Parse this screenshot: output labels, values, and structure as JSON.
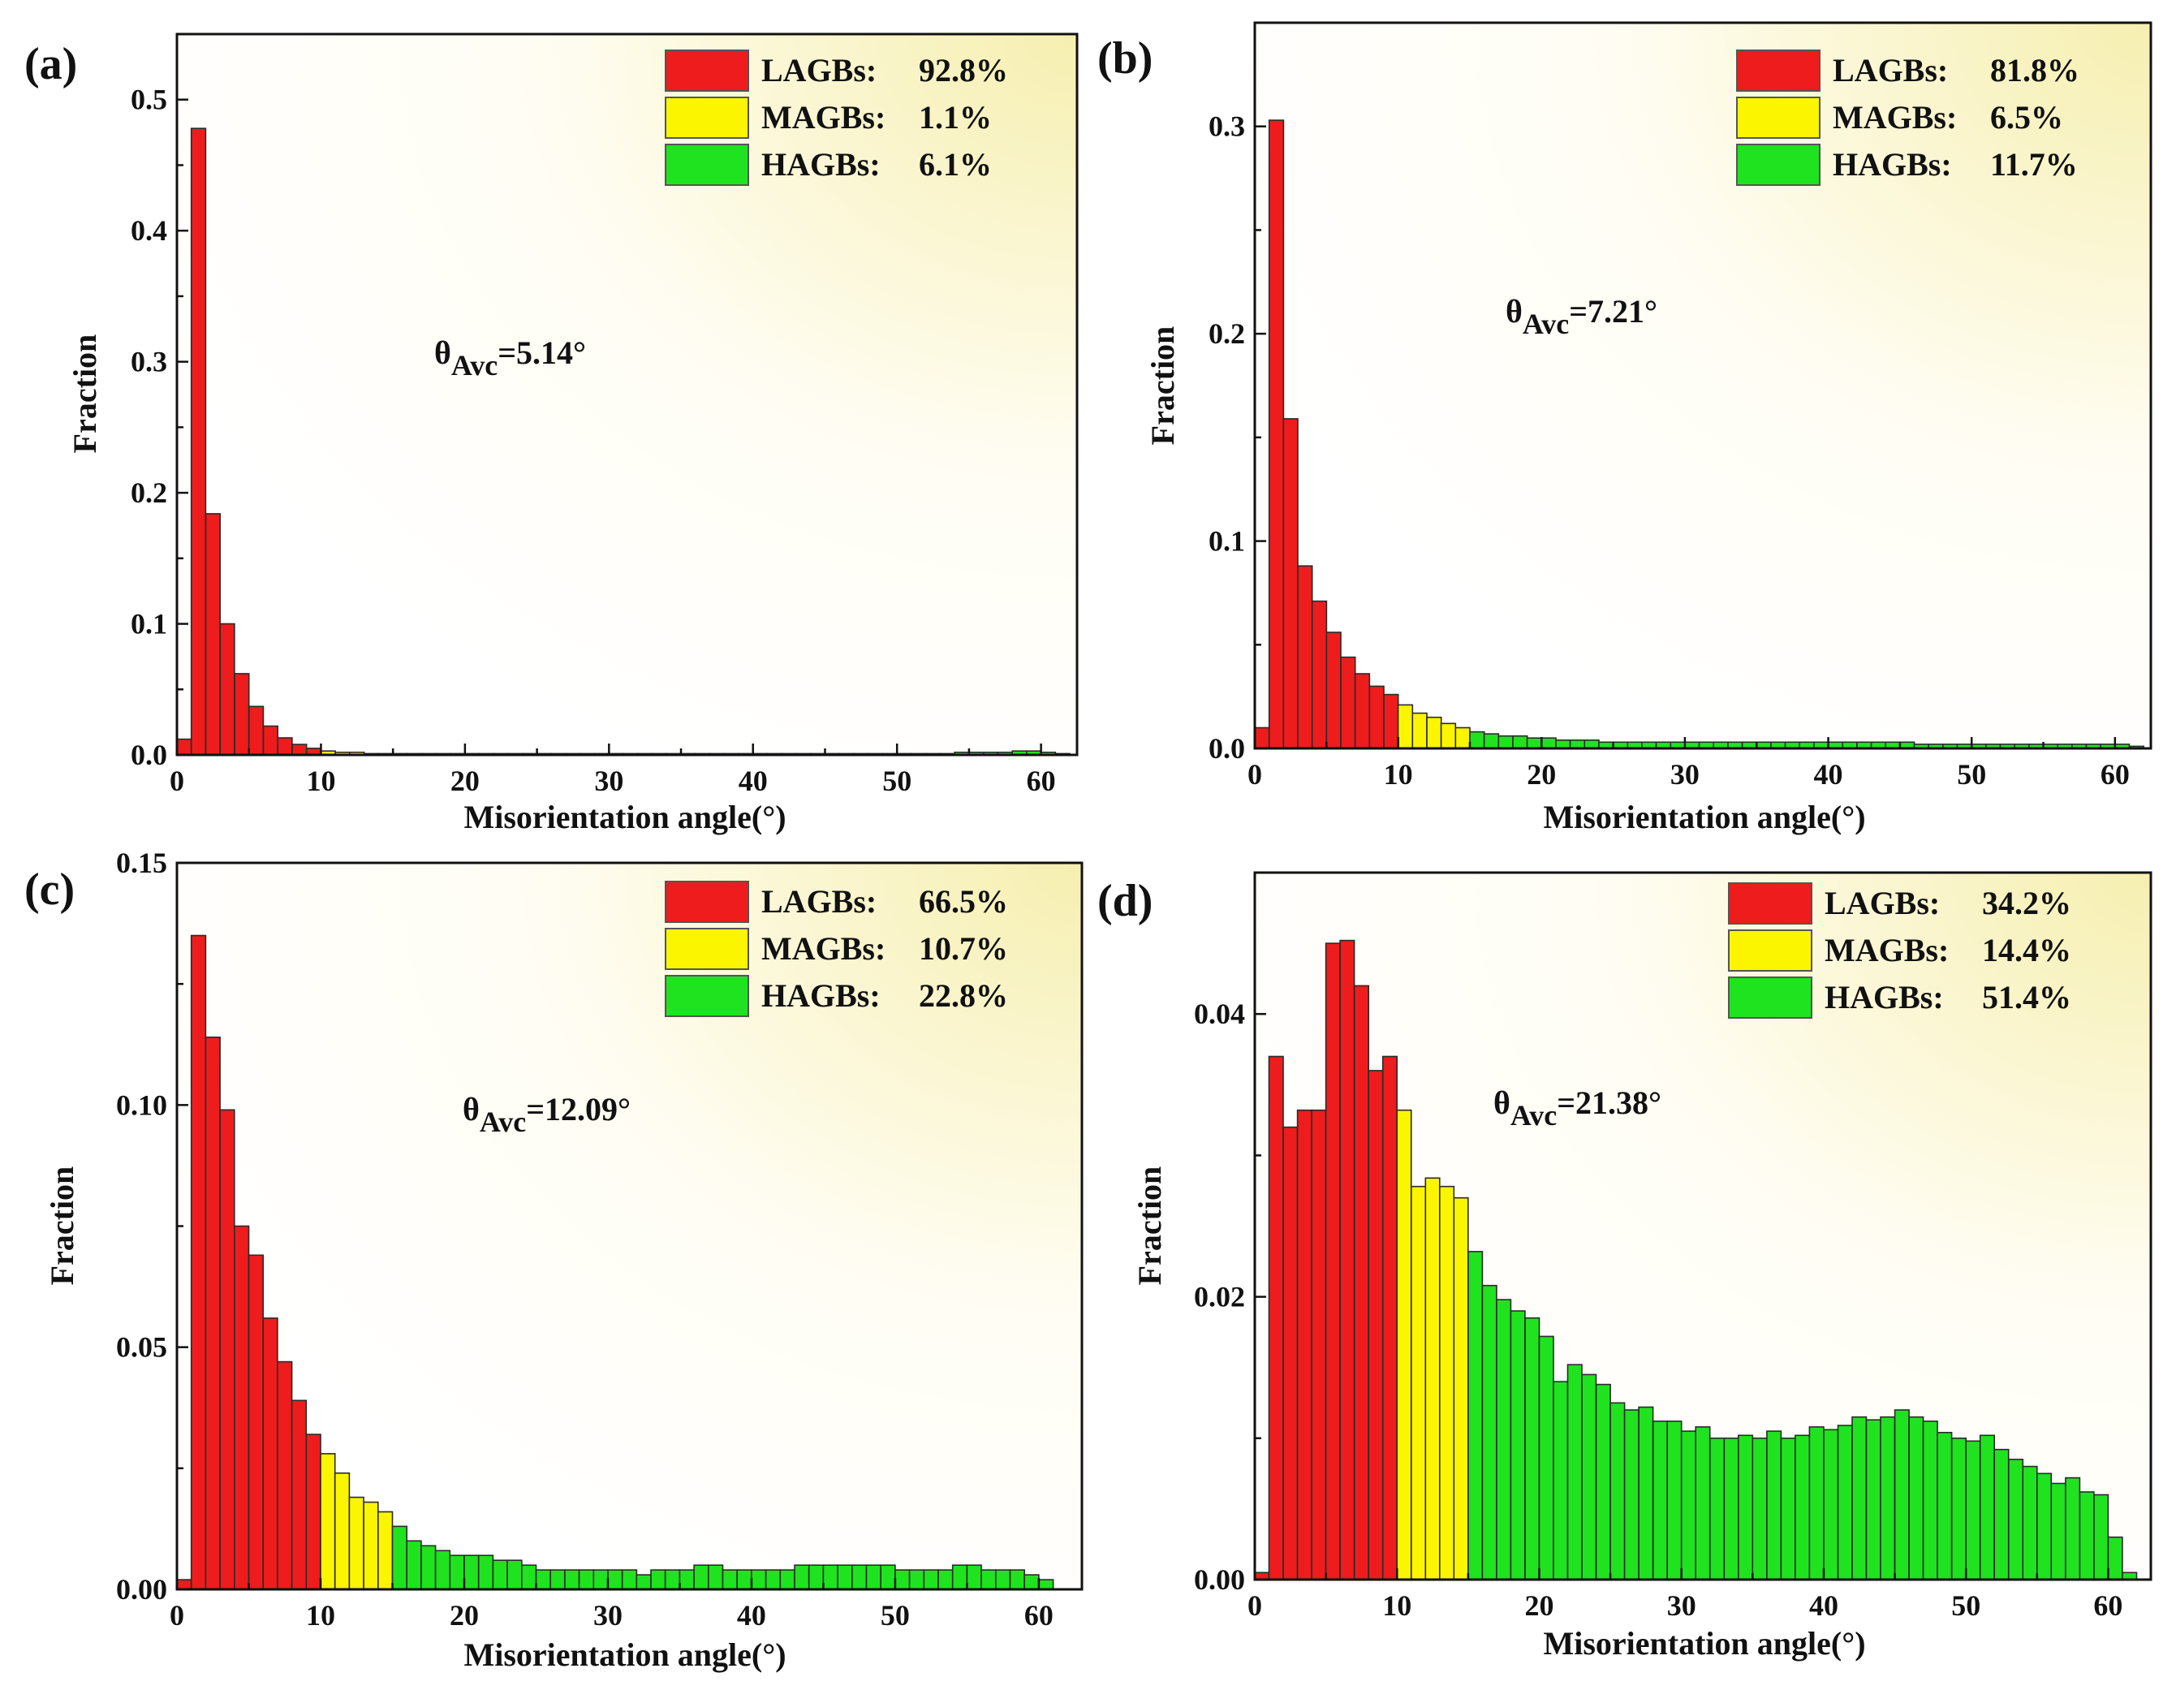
{
  "figure": {
    "colors": {
      "lagb": "#ee1c1c",
      "magb": "#fbf500",
      "hagb": "#1fe31f",
      "axis": "#111111",
      "background_glow": "#f6efb0"
    }
  },
  "chart_data": [
    {
      "type": "bar",
      "panel_label": "(a)",
      "xlabel": "Misorientation angle(°)",
      "ylabel": "Fraction",
      "xlim": [
        0,
        62.5
      ],
      "ylim": [
        0,
        0.55
      ],
      "xticks": [
        0,
        10,
        20,
        30,
        40,
        50,
        60
      ],
      "yticks": [
        0.0,
        0.1,
        0.2,
        0.3,
        0.4,
        0.5
      ],
      "ytick_labels": [
        "0.0",
        "0.1",
        "0.2",
        "0.3",
        "0.4",
        "0.5"
      ],
      "bin_width": 1,
      "annotation": {
        "prefix": "θ",
        "sub": "Avc",
        "value": "=5.14°"
      },
      "legend": [
        {
          "label": "LAGBs:",
          "value": "92.8%",
          "category": "lagb"
        },
        {
          "label": "MAGBs:",
          "value": "1.1%",
          "category": "magb"
        },
        {
          "label": "HAGBs:",
          "value": "6.1%",
          "category": "hagb"
        }
      ],
      "values": [
        0.012,
        0.478,
        0.184,
        0.1,
        0.062,
        0.037,
        0.022,
        0.013,
        0.008,
        0.005,
        0.003,
        0.002,
        0.002,
        0.001,
        0.001,
        0.001,
        0.001,
        0.001,
        0.001,
        0.001,
        0.001,
        0.001,
        0.001,
        0.001,
        0.001,
        0.001,
        0.001,
        0.001,
        0.001,
        0.001,
        0.001,
        0.001,
        0.001,
        0.001,
        0.001,
        0.001,
        0.001,
        0.001,
        0.001,
        0.001,
        0.001,
        0.001,
        0.001,
        0.001,
        0.001,
        0.001,
        0.001,
        0.001,
        0.001,
        0.001,
        0.001,
        0.001,
        0.001,
        0.001,
        0.002,
        0.002,
        0.002,
        0.002,
        0.003,
        0.003,
        0.002,
        0.001
      ]
    },
    {
      "type": "bar",
      "panel_label": "(b)",
      "xlabel": "Misorientation angle(°)",
      "ylabel": "Fraction",
      "xlim": [
        0,
        62.5
      ],
      "ylim": [
        0,
        0.35
      ],
      "xticks": [
        0,
        10,
        20,
        30,
        40,
        50,
        60
      ],
      "yticks": [
        0.0,
        0.1,
        0.2,
        0.3
      ],
      "ytick_labels": [
        "0.0",
        "0.1",
        "0.2",
        "0.3"
      ],
      "bin_width": 1,
      "annotation": {
        "prefix": "θ",
        "sub": "Avc",
        "value": "=7.21°"
      },
      "legend": [
        {
          "label": "LAGBs:",
          "value": "81.8%",
          "category": "lagb"
        },
        {
          "label": "MAGBs:",
          "value": "6.5%",
          "category": "magb"
        },
        {
          "label": "HAGBs:",
          "value": "11.7%",
          "category": "hagb"
        }
      ],
      "values": [
        0.01,
        0.303,
        0.159,
        0.088,
        0.071,
        0.056,
        0.044,
        0.036,
        0.03,
        0.026,
        0.021,
        0.017,
        0.015,
        0.012,
        0.01,
        0.008,
        0.007,
        0.006,
        0.006,
        0.005,
        0.005,
        0.004,
        0.004,
        0.004,
        0.003,
        0.003,
        0.003,
        0.003,
        0.003,
        0.003,
        0.003,
        0.003,
        0.003,
        0.003,
        0.003,
        0.003,
        0.003,
        0.003,
        0.003,
        0.003,
        0.003,
        0.003,
        0.003,
        0.003,
        0.003,
        0.003,
        0.002,
        0.002,
        0.002,
        0.002,
        0.002,
        0.002,
        0.002,
        0.002,
        0.002,
        0.002,
        0.002,
        0.002,
        0.002,
        0.002,
        0.002,
        0.001
      ]
    },
    {
      "type": "bar",
      "panel_label": "(c)",
      "xlabel": "Misorientation angle(°)",
      "ylabel": "Fraction",
      "xlim": [
        0,
        63
      ],
      "ylim": [
        0,
        0.15
      ],
      "xticks": [
        0,
        10,
        20,
        30,
        40,
        50,
        60
      ],
      "yticks": [
        0.0,
        0.05,
        0.1,
        0.15
      ],
      "ytick_labels": [
        "0.00",
        "0.05",
        "0.10",
        "0.15"
      ],
      "bin_width": 1,
      "annotation": {
        "prefix": "θ",
        "sub": "Avc",
        "value": "=12.09°"
      },
      "legend": [
        {
          "label": "LAGBs:",
          "value": "66.5%",
          "category": "lagb"
        },
        {
          "label": "MAGBs:",
          "value": "10.7%",
          "category": "magb"
        },
        {
          "label": "HAGBs:",
          "value": "22.8%",
          "category": "hagb"
        }
      ],
      "values": [
        0.002,
        0.135,
        0.114,
        0.099,
        0.075,
        0.069,
        0.056,
        0.047,
        0.039,
        0.032,
        0.028,
        0.024,
        0.019,
        0.018,
        0.016,
        0.013,
        0.01,
        0.009,
        0.008,
        0.007,
        0.007,
        0.007,
        0.006,
        0.006,
        0.005,
        0.004,
        0.004,
        0.004,
        0.004,
        0.004,
        0.004,
        0.004,
        0.003,
        0.004,
        0.004,
        0.004,
        0.005,
        0.005,
        0.004,
        0.004,
        0.004,
        0.004,
        0.004,
        0.005,
        0.005,
        0.005,
        0.005,
        0.005,
        0.005,
        0.005,
        0.004,
        0.004,
        0.004,
        0.004,
        0.005,
        0.005,
        0.004,
        0.004,
        0.004,
        0.003,
        0.002
      ]
    },
    {
      "type": "bar",
      "panel_label": "(d)",
      "xlabel": "Misorientation angle(°)",
      "ylabel": "Fraction",
      "xlim": [
        0,
        63
      ],
      "ylim": [
        0,
        0.05
      ],
      "xticks": [
        0,
        10,
        20,
        30,
        40,
        50,
        60
      ],
      "yticks": [
        0.0,
        0.02,
        0.04
      ],
      "ytick_labels": [
        "0.00",
        "0.02",
        "0.04"
      ],
      "bin_width": 1,
      "annotation": {
        "prefix": "θ",
        "sub": "Avc",
        "value": "=21.38°"
      },
      "legend": [
        {
          "label": "LAGBs:",
          "value": "34.2%",
          "category": "lagb"
        },
        {
          "label": "MAGBs:",
          "value": "14.4%",
          "category": "magb"
        },
        {
          "label": "HAGBs:",
          "value": "51.4%",
          "category": "hagb"
        }
      ],
      "values": [
        0.0005,
        0.037,
        0.032,
        0.0332,
        0.0332,
        0.045,
        0.0452,
        0.042,
        0.036,
        0.037,
        0.0332,
        0.0278,
        0.0284,
        0.0278,
        0.027,
        0.0232,
        0.0208,
        0.0198,
        0.019,
        0.0185,
        0.0172,
        0.014,
        0.0152,
        0.0145,
        0.0138,
        0.0125,
        0.012,
        0.0122,
        0.0112,
        0.0112,
        0.0105,
        0.0108,
        0.01,
        0.01,
        0.0102,
        0.01,
        0.0105,
        0.01,
        0.0102,
        0.0108,
        0.0106,
        0.0109,
        0.0115,
        0.0113,
        0.0115,
        0.012,
        0.0115,
        0.0112,
        0.0104,
        0.01,
        0.0098,
        0.0102,
        0.0092,
        0.0085,
        0.008,
        0.0075,
        0.0068,
        0.0072,
        0.0062,
        0.006,
        0.003,
        0.0005
      ]
    }
  ]
}
